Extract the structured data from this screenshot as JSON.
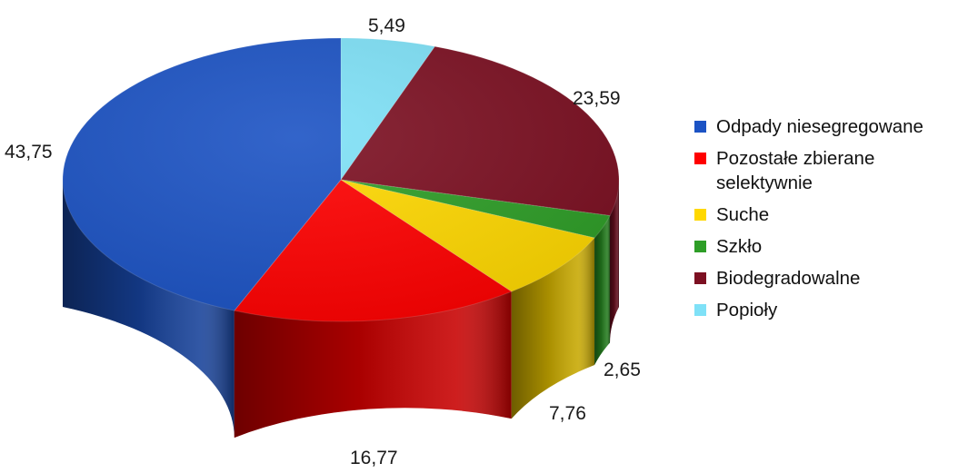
{
  "chart_data": {
    "type": "pie",
    "title": "",
    "start_angle_deg": 90,
    "slices": [
      {
        "label": "Popioły",
        "value": 5.49,
        "value_label": "5,49",
        "color": "#7fe1f7"
      },
      {
        "label": "Biodegradowalne",
        "value": 23.59,
        "value_label": "23,59",
        "color": "#7c1022"
      },
      {
        "label": "Szkło",
        "value": 2.65,
        "value_label": "2,65",
        "color": "#2e9e27"
      },
      {
        "label": "Suche",
        "value": 7.76,
        "value_label": "7,76",
        "color": "#ffd800"
      },
      {
        "label": "Pozostałe zbierane\nselektywnie",
        "value": 16.77,
        "value_label": "16,77",
        "color": "#ff0000"
      },
      {
        "label": "Odpady niesegregowane",
        "value": 43.75,
        "value_label": "43,75",
        "color": "#1c53c4"
      }
    ],
    "legend_order": [
      "Odpady niesegregowane",
      "Pozostałe zbierane\nselektywnie",
      "Suche",
      "Szkło",
      "Biodegradowalne",
      "Popioły"
    ],
    "legend_position": "right"
  }
}
